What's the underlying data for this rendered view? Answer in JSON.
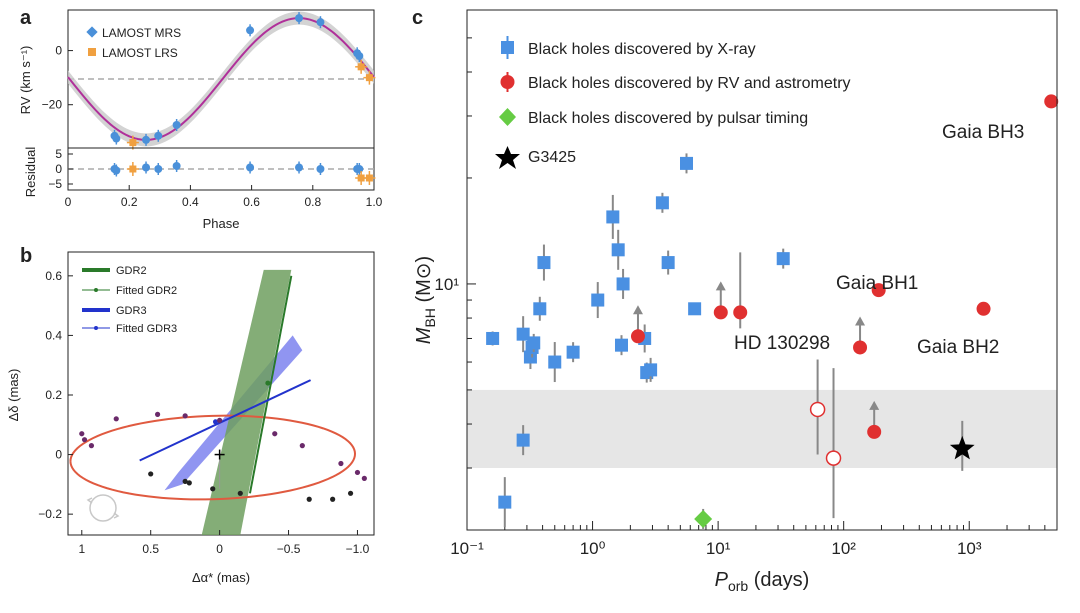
{
  "panels": {
    "a": "a",
    "b": "b",
    "c": "c"
  },
  "chart_data": [
    {
      "id": "a-top",
      "type": "scatter",
      "ylabel": "RV (km s⁻¹)",
      "xlim": [
        0,
        1
      ],
      "ylim": [
        -36,
        15
      ],
      "y_ticks": [
        0,
        -20
      ],
      "y_tick_labels": [
        "0",
        "−20"
      ],
      "reference_line_y": -10.5,
      "colors": {
        "mrs": "#4a90d9",
        "lrs": "#f0a040",
        "model": "#b0309a",
        "band": "#c8c8c8",
        "ref": "#aaaaaa"
      },
      "legend": {
        "placement": "upper-left",
        "entries": [
          "LAMOST MRS",
          "LAMOST LRS"
        ]
      },
      "series": [
        {
          "name": "LAMOST MRS",
          "x": [
            0.152,
            0.158,
            0.255,
            0.295,
            0.355,
            0.595,
            0.755,
            0.825,
            0.945,
            0.952
          ],
          "y": [
            -31.5,
            -32.5,
            -33,
            -31.5,
            -27.5,
            7.5,
            12,
            10.5,
            -1,
            -2
          ]
        },
        {
          "name": "LAMOST LRS",
          "x": [
            0.212,
            0.958,
            0.985
          ],
          "y": [
            -34,
            -6,
            -10
          ]
        }
      ]
    },
    {
      "id": "a-bottom",
      "type": "scatter",
      "xlabel": "Phase",
      "ylabel": "Residual",
      "xlim": [
        0,
        1
      ],
      "ylim": [
        -7,
        7
      ],
      "x_ticks": [
        0,
        0.2,
        0.4,
        0.6,
        0.8,
        1.0
      ],
      "x_tick_labels": [
        "0",
        "0.2",
        "0.4",
        "0.6",
        "0.8",
        "1.0"
      ],
      "y_ticks": [
        5,
        0,
        -5
      ],
      "y_tick_labels": [
        "5",
        "0",
        "−5"
      ],
      "series": [
        {
          "name": "LAMOST MRS",
          "x": [
            0.152,
            0.158,
            0.255,
            0.295,
            0.355,
            0.595,
            0.755,
            0.825,
            0.945,
            0.952
          ],
          "y": [
            0,
            -0.5,
            0.5,
            0,
            1,
            0.5,
            0.5,
            0,
            0,
            0
          ]
        },
        {
          "name": "LAMOST LRS",
          "x": [
            0.212,
            0.958,
            0.985
          ],
          "y": [
            0,
            -3,
            -3
          ]
        }
      ]
    },
    {
      "id": "b",
      "type": "scatter",
      "xlabel": "Δα* (mas)",
      "ylabel": "Δδ (mas)",
      "xlim": [
        1.1,
        -1.12
      ],
      "ylim": [
        -0.27,
        0.68
      ],
      "x_ticks": [
        1,
        0.5,
        0,
        -0.5,
        -1.0
      ],
      "x_tick_labels": [
        "1",
        "0.5",
        "0",
        "−0.5",
        "−1.0"
      ],
      "y_ticks": [
        0.6,
        0.4,
        0.2,
        0,
        -0.2
      ],
      "y_tick_labels": [
        "0.6",
        "0.4",
        "0.2",
        "0",
        "−0.2"
      ],
      "legend": {
        "placement": "upper-right",
        "entries": [
          "GDR2",
          "Fitted GDR2",
          "GDR3",
          "Fitted GDR3"
        ]
      },
      "colors": {
        "gdr2": "#2a7a2a",
        "gdr2_band": "#6f9f5f",
        "gdr3": "#2233cc",
        "gdr3_band": "#7c82ee",
        "orbit": "#e05a40",
        "epoch": "#6a2a6a"
      },
      "orbit_ellipse": {
        "center": [
          0.05,
          -0.01
        ],
        "semi_x": 1.04,
        "semi_y": 0.14,
        "tilt_deg": 7
      },
      "gdr2_line": {
        "x": [
          -0.22,
          -0.52
        ],
        "y": [
          -0.13,
          0.6
        ]
      },
      "gdr3_line": {
        "x": [
          0.58,
          -0.66
        ],
        "y": [
          -0.02,
          0.25
        ]
      },
      "origin_marker": [
        0,
        0
      ],
      "epoch_points": {
        "x": [
          1.0,
          0.98,
          0.93,
          0.75,
          0.45,
          0.25,
          0.0,
          -0.4,
          -0.6,
          -0.88,
          -1.0,
          -1.05,
          0.5,
          0.25,
          0.22,
          0.05,
          -0.15,
          -0.65,
          -0.82,
          -0.95
        ],
        "y": [
          0.07,
          0.05,
          0.03,
          0.12,
          0.135,
          0.13,
          0.115,
          0.07,
          0.03,
          -0.03,
          -0.06,
          -0.08,
          -0.065,
          -0.09,
          -0.095,
          -0.115,
          -0.13,
          -0.15,
          -0.15,
          -0.13
        ]
      }
    },
    {
      "id": "c",
      "type": "scatter",
      "xlabel": "P",
      "xlabel_sub": "orb",
      "xlabel_unit": " (days)",
      "ylabel": "M",
      "ylabel_sub": "BH",
      "ylabel_unit": " (M⊙)",
      "x_scale": "log",
      "y_scale": "log",
      "xlim": [
        0.1,
        5000
      ],
      "ylim": [
        2.0,
        60
      ],
      "x_ticks": [
        0.1,
        1,
        10,
        100,
        1000
      ],
      "x_tick_labels": [
        "10⁻¹",
        "10⁰",
        "10¹",
        "10²",
        "10³"
      ],
      "y_ticks": [
        10
      ],
      "y_tick_labels": [
        "10¹"
      ],
      "mass_gap_band": [
        3,
        5
      ],
      "colors": {
        "xray": "#4a90e2",
        "rv": "#e03030",
        "pulsar": "#66cc44",
        "g3425": "#000000",
        "band": "#e6e6e6",
        "errbar": "#888888"
      },
      "legend": {
        "placement": "upper-left",
        "entries": [
          "Black holes discovered by X-ray",
          "Black holes discovered by RV and astrometry",
          "Black holes discovered by pulsar timing",
          "G3425"
        ]
      },
      "series": [
        {
          "name": "Black holes discovered by X-ray",
          "x": [
            0.2,
            0.16,
            0.28,
            0.28,
            0.32,
            0.33,
            0.34,
            0.38,
            0.41,
            0.5,
            0.7,
            1.1,
            1.45,
            1.6,
            1.75,
            1.7,
            2.7,
            2.6,
            2.9,
            3.6,
            4.0,
            5.6,
            6.5,
            33
          ],
          "y": [
            2.4,
            7,
            3.6,
            7.2,
            6.2,
            6.6,
            6.8,
            8.5,
            11.5,
            6.0,
            6.4,
            9.0,
            15.5,
            12.5,
            10.0,
            6.7,
            5.6,
            7.0,
            5.7,
            17,
            11.5,
            22,
            8.5,
            11.8
          ]
        },
        {
          "name": "Black holes discovered by RV and astrometry",
          "x": [
            2.3,
            10.5,
            15,
            135,
            175,
            190,
            1300,
            4500
          ],
          "y": [
            7.1,
            8.3,
            8.3,
            6.6,
            3.8,
            9.6,
            8.5,
            33
          ],
          "filled": [
            true,
            true,
            true,
            true,
            true,
            true,
            true,
            true
          ]
        },
        {
          "name": "RV open",
          "x": [
            62,
            83
          ],
          "y": [
            4.4,
            3.2
          ]
        },
        {
          "name": "Black holes discovered by pulsar timing",
          "x": [
            7.6
          ],
          "y": [
            2.15
          ]
        },
        {
          "name": "G3425",
          "x": [
            880
          ],
          "y": [
            3.4
          ]
        }
      ],
      "annotations": [
        "Gaia BH3",
        "Gaia BH1",
        "HD 130298",
        "Gaia BH2"
      ]
    }
  ]
}
